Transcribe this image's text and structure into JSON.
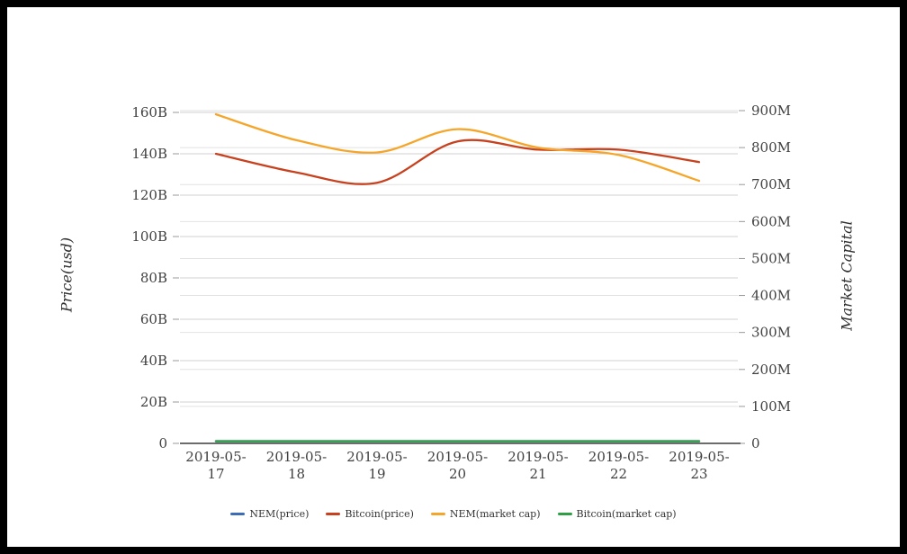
{
  "window": {
    "frame_color": "#000000",
    "background_color": "#ffffff"
  },
  "chart_data": {
    "type": "line",
    "smooth": true,
    "title": "",
    "categories": [
      "2019-05-17",
      "2019-05-18",
      "2019-05-19",
      "2019-05-20",
      "2019-05-21",
      "2019-05-22",
      "2019-05-23"
    ],
    "left_axis": {
      "title": "Price(usd)",
      "ticks": [
        "0",
        "20B",
        "40B",
        "60B",
        "80B",
        "100B",
        "120B",
        "140B",
        "160B"
      ],
      "max_value_billions": 160,
      "gridlines": true
    },
    "right_axis": {
      "title": "Market Capital",
      "ticks": [
        "0",
        "100M",
        "200M",
        "300M",
        "400M",
        "500M",
        "600M",
        "700M",
        "800M",
        "900M"
      ],
      "max_value_millions": 900,
      "gridlines": true
    },
    "series": [
      {
        "name": "NEM(price)",
        "color": "#3c6cb4",
        "axis": "left",
        "unit": "B",
        "values": [
          0,
          0,
          0,
          0,
          0,
          0,
          0
        ]
      },
      {
        "name": "Bitcoin(price)",
        "color": "#c7411e",
        "axis": "left",
        "unit": "B",
        "values": [
          140,
          131,
          126,
          146,
          142,
          142,
          136
        ]
      },
      {
        "name": "NEM(market cap)",
        "color": "#f5a62a",
        "axis": "right",
        "unit": "M",
        "values": [
          890,
          820,
          787,
          850,
          800,
          780,
          710
        ]
      },
      {
        "name": "Bitcoin(market cap)",
        "color": "#2f9e44",
        "axis": "right",
        "unit": "M",
        "values": [
          0,
          0,
          0,
          0,
          0,
          0,
          0
        ]
      }
    ],
    "legend": {
      "position": "bottom-center",
      "items": [
        {
          "label": "NEM(price)",
          "color": "#3c6cb4"
        },
        {
          "label": "Bitcoin(price)",
          "color": "#c7411e"
        },
        {
          "label": "NEM(market cap)",
          "color": "#f5a62a"
        },
        {
          "label": "Bitcoin(market cap)",
          "color": "#2f9e44"
        }
      ]
    },
    "colors": {
      "gridline_left": "#d0d0d0",
      "gridline_right": "#e2e2e2",
      "axis_line": "#3c3c3c",
      "tick_mark": "#999999",
      "tick_label": "#404040"
    }
  }
}
